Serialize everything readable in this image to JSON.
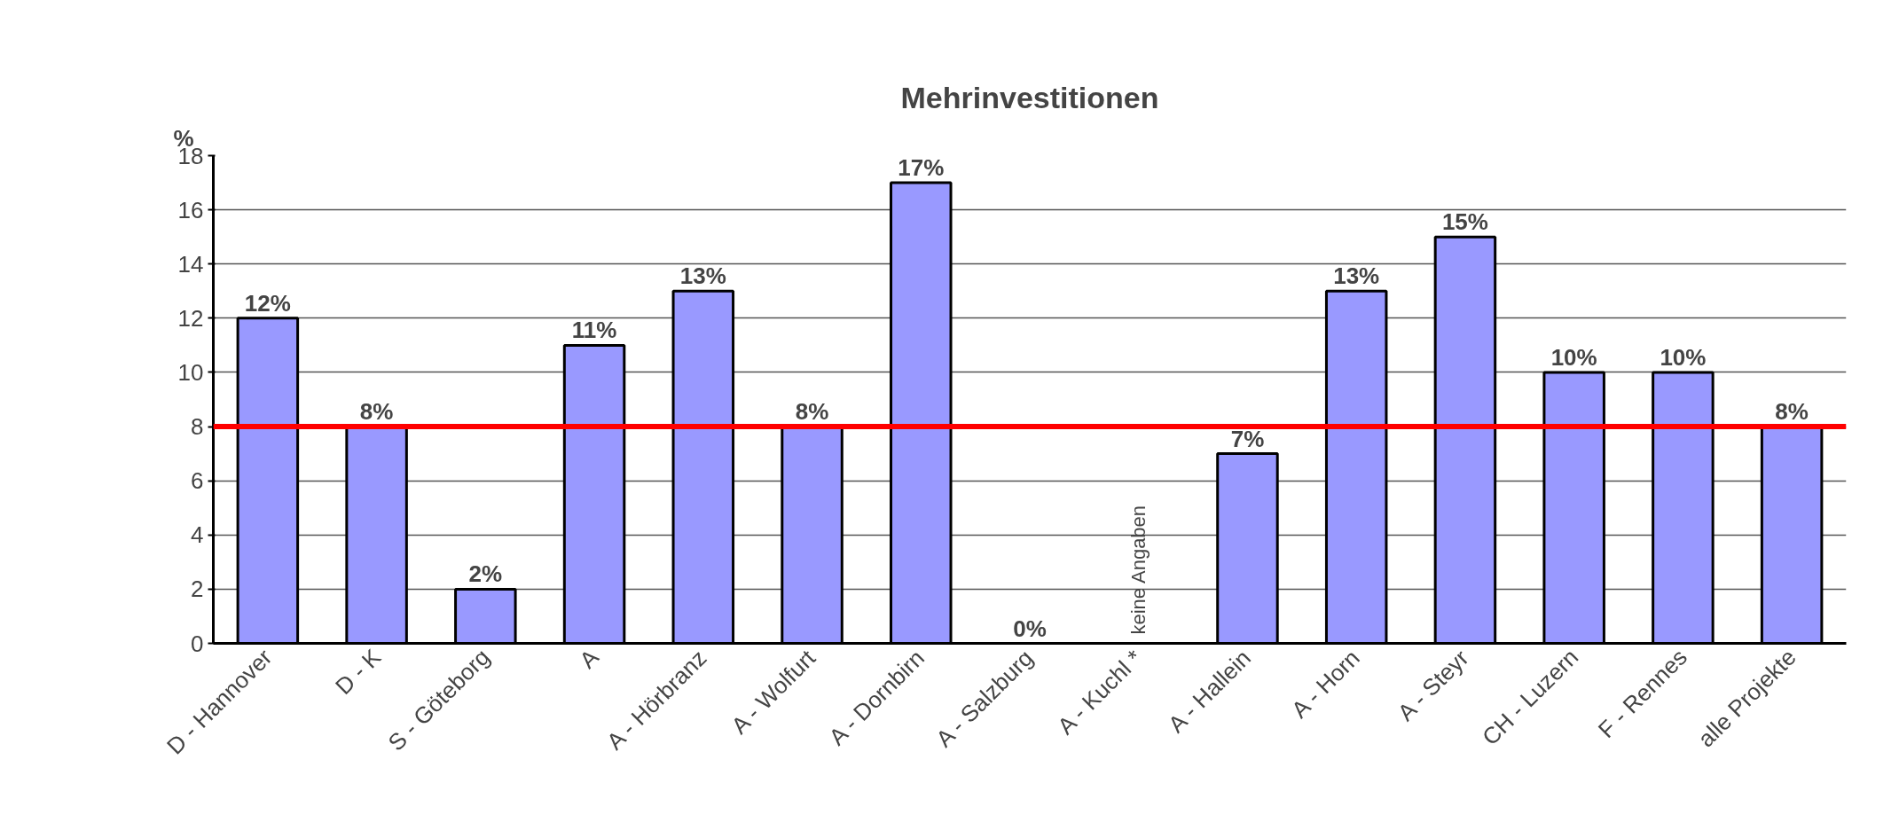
{
  "chart_data": {
    "type": "bar",
    "title": "Mehrinvestitionen",
    "ylabel": "%",
    "categories": [
      "D - Hannover",
      "D - K",
      "S - Göteborg",
      "A",
      "A - Hörbranz",
      "A - Wolfurt",
      "A - Dornbirn",
      "A - Salzburg",
      "A - Kuchl *",
      "A - Hallein",
      "A - Horn",
      "A - Steyr",
      "CH - Luzern",
      "F - Rennes",
      "alle Projekte"
    ],
    "values": [
      12,
      8,
      2,
      11,
      13,
      8,
      17,
      0,
      null,
      7,
      13,
      15,
      10,
      10,
      8
    ],
    "value_labels": [
      "12%",
      "8%",
      "2%",
      "11%",
      "13%",
      "8%",
      "17%",
      "0%",
      null,
      "7%",
      "13%",
      "15%",
      "10%",
      "10%",
      "8%"
    ],
    "color": "#9999ff",
    "ylim": [
      0,
      18
    ],
    "yticks": [
      0,
      2,
      4,
      6,
      8,
      10,
      12,
      14,
      16,
      18
    ],
    "grid": "y",
    "ref_lines": [
      {
        "axis": "y",
        "value": 8,
        "color": "#ff0000"
      }
    ],
    "annotations": [
      "keine Angaben"
    ]
  }
}
